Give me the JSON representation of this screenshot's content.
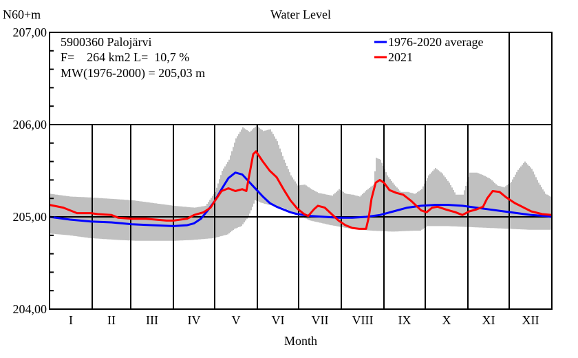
{
  "chart_data": {
    "type": "line",
    "title": "Water Level",
    "ylabel": "N60+m",
    "xlabel": "Month",
    "ylim": [
      204.0,
      207.0
    ],
    "xlim": [
      0,
      365
    ],
    "y_ticks": [
      {
        "value": 207.0,
        "label": "207,00"
      },
      {
        "value": 206.0,
        "label": "206,00"
      },
      {
        "value": 205.0,
        "label": "205,00"
      },
      {
        "value": 204.0,
        "label": "204,00"
      }
    ],
    "y_minor_step": 0.2,
    "month_boundaries": [
      31,
      59,
      90,
      120,
      151,
      181,
      212,
      243,
      273,
      304,
      334
    ],
    "x_tick_labels": [
      "I",
      "II",
      "III",
      "IV",
      "V",
      "VI",
      "VII",
      "VIII",
      "IX",
      "X",
      "XI",
      "XII"
    ],
    "grid": "month verticals from 206,00 down; horizontals at 206,00 and 205,00; extra vertical at XII from top",
    "info_text": [
      "5900360 Palojärvi",
      "F=    264 km2 L=  10,7 %",
      "MW(1976-2000) = 205,03 m"
    ],
    "legend": {
      "placement": "top-right",
      "entries": [
        {
          "label": "1976-2020 average",
          "color": "#0000ff"
        },
        {
          "label": "2021",
          "color": "#ff0000"
        }
      ]
    },
    "band": {
      "name": "min-max range",
      "color": "#c0c0c0",
      "upper": [
        [
          0,
          205.25
        ],
        [
          15,
          205.22
        ],
        [
          30,
          205.21
        ],
        [
          50,
          205.19
        ],
        [
          60,
          205.18
        ],
        [
          75,
          205.15
        ],
        [
          90,
          205.12
        ],
        [
          105,
          205.1
        ],
        [
          113,
          205.12
        ],
        [
          120,
          205.27
        ],
        [
          125,
          205.5
        ],
        [
          130,
          205.62
        ],
        [
          135,
          205.85
        ],
        [
          140,
          205.97
        ],
        [
          145,
          205.92
        ],
        [
          150,
          205.99
        ],
        [
          155,
          205.93
        ],
        [
          160,
          205.95
        ],
        [
          165,
          205.82
        ],
        [
          170,
          205.62
        ],
        [
          175,
          205.45
        ],
        [
          180,
          205.34
        ],
        [
          185,
          205.35
        ],
        [
          190,
          205.3
        ],
        [
          195,
          205.26
        ],
        [
          205,
          205.23
        ],
        [
          210,
          205.3
        ],
        [
          215,
          205.25
        ],
        [
          220,
          205.24
        ],
        [
          225,
          205.22
        ],
        [
          230,
          205.29
        ],
        [
          235,
          205.35
        ],
        [
          237,
          205.64
        ],
        [
          240,
          205.62
        ],
        [
          245,
          205.45
        ],
        [
          250,
          205.35
        ],
        [
          255,
          205.27
        ],
        [
          260,
          205.27
        ],
        [
          265,
          205.25
        ],
        [
          270,
          205.3
        ],
        [
          275,
          205.45
        ],
        [
          280,
          205.53
        ],
        [
          285,
          205.47
        ],
        [
          290,
          205.37
        ],
        [
          295,
          205.24
        ],
        [
          300,
          205.24
        ],
        [
          305,
          205.48
        ],
        [
          310,
          205.48
        ],
        [
          315,
          205.45
        ],
        [
          320,
          205.41
        ],
        [
          325,
          205.34
        ],
        [
          330,
          205.32
        ],
        [
          335,
          205.38
        ],
        [
          340,
          205.51
        ],
        [
          345,
          205.6
        ],
        [
          350,
          205.52
        ],
        [
          355,
          205.37
        ],
        [
          360,
          205.25
        ],
        [
          365,
          205.21
        ]
      ],
      "lower": [
        [
          0,
          204.82
        ],
        [
          15,
          204.8
        ],
        [
          30,
          204.77
        ],
        [
          50,
          204.75
        ],
        [
          65,
          204.74
        ],
        [
          90,
          204.74
        ],
        [
          105,
          204.75
        ],
        [
          120,
          204.77
        ],
        [
          130,
          204.81
        ],
        [
          135,
          204.87
        ],
        [
          140,
          204.9
        ],
        [
          145,
          205.0
        ],
        [
          150,
          205.18
        ],
        [
          155,
          205.15
        ],
        [
          160,
          205.13
        ],
        [
          170,
          205.1
        ],
        [
          180,
          205.03
        ],
        [
          190,
          204.96
        ],
        [
          205,
          204.91
        ],
        [
          220,
          204.87
        ],
        [
          235,
          204.85
        ],
        [
          250,
          204.84
        ],
        [
          265,
          204.85
        ],
        [
          270,
          204.85
        ],
        [
          275,
          204.9
        ],
        [
          290,
          204.9
        ],
        [
          305,
          204.89
        ],
        [
          320,
          204.88
        ],
        [
          335,
          204.87
        ],
        [
          350,
          204.86
        ],
        [
          365,
          204.86
        ]
      ]
    },
    "series": [
      {
        "name": "1976-2020 average",
        "color": "#0000ff",
        "points": [
          [
            0,
            205.0
          ],
          [
            15,
            204.97
          ],
          [
            30,
            204.95
          ],
          [
            45,
            204.94
          ],
          [
            60,
            204.92
          ],
          [
            75,
            204.91
          ],
          [
            90,
            204.9
          ],
          [
            100,
            204.91
          ],
          [
            105,
            204.93
          ],
          [
            110,
            204.98
          ],
          [
            115,
            205.07
          ],
          [
            120,
            205.17
          ],
          [
            125,
            205.3
          ],
          [
            130,
            205.42
          ],
          [
            135,
            205.48
          ],
          [
            140,
            205.46
          ],
          [
            145,
            205.38
          ],
          [
            150,
            205.3
          ],
          [
            155,
            205.22
          ],
          [
            160,
            205.15
          ],
          [
            165,
            205.11
          ],
          [
            170,
            205.08
          ],
          [
            175,
            205.05
          ],
          [
            180,
            205.03
          ],
          [
            185,
            205.02
          ],
          [
            190,
            205.01
          ],
          [
            200,
            205.0
          ],
          [
            210,
            204.99
          ],
          [
            220,
            204.99
          ],
          [
            230,
            205.0
          ],
          [
            240,
            205.02
          ],
          [
            250,
            205.06
          ],
          [
            260,
            205.1
          ],
          [
            270,
            205.12
          ],
          [
            280,
            205.13
          ],
          [
            290,
            205.13
          ],
          [
            300,
            205.12
          ],
          [
            310,
            205.1
          ],
          [
            320,
            205.08
          ],
          [
            330,
            205.06
          ],
          [
            340,
            205.04
          ],
          [
            350,
            205.02
          ],
          [
            360,
            205.01
          ],
          [
            365,
            205.0
          ]
        ]
      },
      {
        "name": "2021",
        "color": "#ff0000",
        "points": [
          [
            0,
            205.13
          ],
          [
            10,
            205.1
          ],
          [
            20,
            205.04
          ],
          [
            30,
            205.04
          ],
          [
            35,
            205.03
          ],
          [
            45,
            205.02
          ],
          [
            50,
            204.99
          ],
          [
            60,
            204.98
          ],
          [
            70,
            204.98
          ],
          [
            85,
            204.96
          ],
          [
            90,
            204.96
          ],
          [
            100,
            204.98
          ],
          [
            105,
            205.02
          ],
          [
            112,
            205.05
          ],
          [
            117,
            205.1
          ],
          [
            120,
            205.17
          ],
          [
            125,
            205.28
          ],
          [
            130,
            205.31
          ],
          [
            135,
            205.28
          ],
          [
            140,
            205.3
          ],
          [
            143,
            205.28
          ],
          [
            145,
            205.44
          ],
          [
            148,
            205.68
          ],
          [
            150,
            205.71
          ],
          [
            155,
            205.6
          ],
          [
            160,
            205.5
          ],
          [
            165,
            205.43
          ],
          [
            170,
            205.3
          ],
          [
            175,
            205.18
          ],
          [
            180,
            205.09
          ],
          [
            185,
            205.03
          ],
          [
            188,
            205.01
          ],
          [
            192,
            205.08
          ],
          [
            195,
            205.12
          ],
          [
            200,
            205.1
          ],
          [
            205,
            205.03
          ],
          [
            210,
            204.96
          ],
          [
            215,
            204.91
          ],
          [
            220,
            204.88
          ],
          [
            225,
            204.87
          ],
          [
            230,
            204.87
          ],
          [
            232,
            205.0
          ],
          [
            234,
            205.2
          ],
          [
            237,
            205.37
          ],
          [
            240,
            205.4
          ],
          [
            243,
            205.37
          ],
          [
            247,
            205.29
          ],
          [
            252,
            205.26
          ],
          [
            257,
            205.24
          ],
          [
            263,
            205.17
          ],
          [
            270,
            205.07
          ],
          [
            274,
            205.05
          ],
          [
            278,
            205.1
          ],
          [
            282,
            205.11
          ],
          [
            288,
            205.08
          ],
          [
            295,
            205.05
          ],
          [
            300,
            205.02
          ],
          [
            305,
            205.06
          ],
          [
            310,
            205.08
          ],
          [
            315,
            205.11
          ],
          [
            318,
            205.2
          ],
          [
            322,
            205.28
          ],
          [
            327,
            205.27
          ],
          [
            332,
            205.21
          ],
          [
            338,
            205.15
          ],
          [
            342,
            205.12
          ],
          [
            350,
            205.06
          ],
          [
            358,
            205.03
          ],
          [
            365,
            205.02
          ]
        ]
      }
    ]
  }
}
